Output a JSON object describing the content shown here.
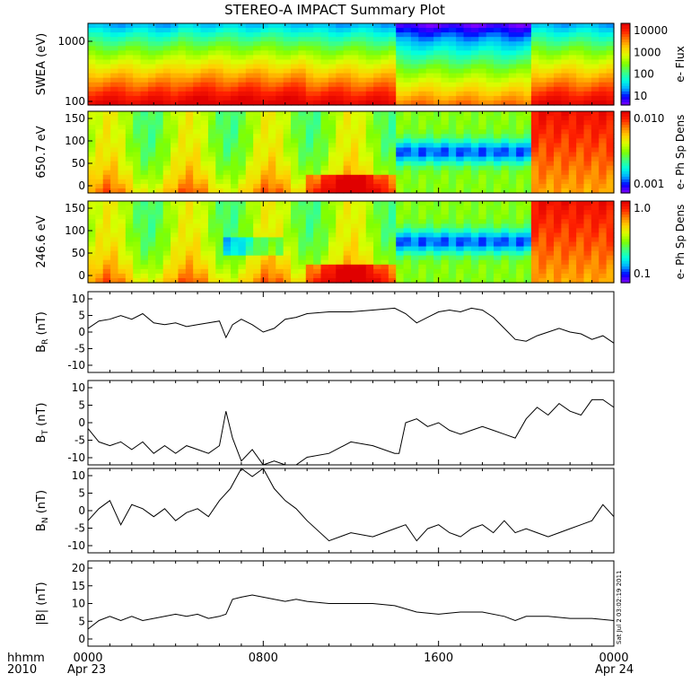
{
  "title": "STEREO-A IMPACT Summary Plot",
  "timestamp": "Sat Jul  2 03:02:19 2011",
  "footer": {
    "time_label": "hhmm",
    "year_label": "2010",
    "date_start": "Apr 23",
    "date_end": "Apr 24",
    "x_ticks": [
      "0000",
      "0800",
      "1600",
      "0000"
    ]
  },
  "colors": {
    "trace": "#000000",
    "colormap": [
      "#7f00ff",
      "#0000ff",
      "#00b0ff",
      "#00ffe0",
      "#40ff80",
      "#80ff00",
      "#d8ff00",
      "#ffd000",
      "#ff8000",
      "#ff2000",
      "#e00000"
    ]
  },
  "chart_data": [
    {
      "type": "heatmap",
      "ylabel": "SWEA (eV)",
      "y_scale": "log",
      "ylim": [
        100,
        2000
      ],
      "y_ticks": [
        "1000",
        "100"
      ],
      "colorbar_label": "e- Flux",
      "colorbar_scale": "log",
      "colorbar_ticks": [
        "10000",
        "1000",
        "100",
        "10"
      ]
    },
    {
      "type": "heatmap",
      "ylabel": "650.7 eV",
      "ylim": [
        0,
        180
      ],
      "y_ticks": [
        "150",
        "100",
        "50",
        "0"
      ],
      "colorbar_label": "e- Ph Sp Dens",
      "colorbar_scale": "log",
      "colorbar_ticks": [
        "0.010",
        "0.001"
      ]
    },
    {
      "type": "heatmap",
      "ylabel": "246.6 eV",
      "ylim": [
        0,
        180
      ],
      "y_ticks": [
        "150",
        "100",
        "50",
        "0"
      ],
      "colorbar_label": "e- Ph Sp Dens",
      "colorbar_scale": "log",
      "colorbar_ticks": [
        "1.0",
        "0.1"
      ]
    },
    {
      "type": "line",
      "ylabel_main": "B",
      "ylabel_sub": "R",
      "ylabel_unit": " (nT)",
      "ylim": [
        -12,
        10
      ],
      "y_ticks": [
        "10",
        "5",
        "0",
        "-5",
        "-10"
      ],
      "x_hours": [
        0,
        0.5,
        1,
        1.5,
        2,
        2.5,
        3,
        3.5,
        4,
        4.5,
        5,
        5.5,
        6,
        6.3,
        6.6,
        7,
        7.5,
        8,
        8.5,
        9,
        9.5,
        10,
        11,
        12,
        13,
        14,
        14.5,
        15,
        15.5,
        16,
        16.5,
        17,
        17.5,
        18,
        18.5,
        19,
        19.5,
        20,
        20.5,
        21,
        21.5,
        22,
        22.5,
        23,
        23.5,
        24
      ],
      "values": [
        0,
        2,
        2.5,
        3.5,
        2.5,
        4,
        1.5,
        1,
        1.5,
        0.5,
        1,
        1.5,
        2,
        -2.5,
        1,
        2.5,
        1,
        -1,
        0,
        2.5,
        3,
        4,
        4.5,
        4.5,
        5,
        5.5,
        4,
        1.5,
        3,
        4.5,
        5,
        4.5,
        5.5,
        5,
        3,
        0,
        -3,
        -3.5,
        -2,
        -1,
        0,
        -1,
        -1.5,
        -3,
        -2,
        -4
      ]
    },
    {
      "type": "line",
      "ylabel_main": "B",
      "ylabel_sub": "T",
      "ylabel_unit": " (nT)",
      "ylim": [
        -11,
        11
      ],
      "y_ticks": [
        "10",
        "5",
        "0",
        "-5",
        "-10"
      ],
      "x_hours": [
        0,
        0.5,
        1,
        1.5,
        2,
        2.5,
        3,
        3.5,
        4,
        4.5,
        5,
        5.5,
        6,
        6.3,
        6.6,
        7,
        7.5,
        8,
        8.5,
        9,
        9.5,
        10,
        11,
        12,
        13,
        14,
        14.2,
        14.5,
        15,
        15.5,
        16,
        16.5,
        17,
        17.5,
        18,
        18.5,
        19,
        19.5,
        20,
        20.5,
        21,
        21.5,
        22,
        22.5,
        23,
        23.5,
        24
      ],
      "values": [
        -1.5,
        -5,
        -6,
        -5,
        -7,
        -5,
        -8,
        -6,
        -8,
        -6,
        -7,
        -8,
        -6,
        3,
        -4,
        -10,
        -7,
        -11,
        -10,
        -11,
        -11,
        -9,
        -8,
        -5,
        -6,
        -8,
        -8,
        0,
        1,
        -1,
        0,
        -2,
        -3,
        -2,
        -1,
        -2,
        -3,
        -4,
        1,
        4,
        2,
        5,
        3,
        2,
        6,
        6,
        4
      ]
    },
    {
      "type": "line",
      "ylabel_main": "B",
      "ylabel_sub": "N",
      "ylabel_unit": " (nT)",
      "ylim": [
        -11,
        10
      ],
      "y_ticks": [
        "10",
        "5",
        "0",
        "-5",
        "-10"
      ],
      "x_hours": [
        0,
        0.5,
        1,
        1.5,
        2,
        2.5,
        3,
        3.5,
        4,
        4.5,
        5,
        5.5,
        6,
        6.5,
        7,
        7.5,
        8,
        8.5,
        9,
        9.5,
        10,
        11,
        12,
        13,
        14,
        14.5,
        15,
        15.5,
        16,
        16.5,
        17,
        17.5,
        18,
        18.5,
        19,
        19.5,
        20,
        20.5,
        21,
        21.5,
        22,
        22.5,
        23,
        23.5,
        24
      ],
      "values": [
        -3,
        0,
        2,
        -4,
        1,
        0,
        -2,
        0,
        -3,
        -1,
        0,
        -2,
        2,
        5,
        10,
        8,
        10,
        5,
        2,
        0,
        -3,
        -8,
        -6,
        -7,
        -5,
        -4,
        -8,
        -5,
        -4,
        -6,
        -7,
        -5,
        -4,
        -6,
        -3,
        -6,
        -5,
        -6,
        -7,
        -6,
        -5,
        -4,
        -3,
        1,
        -2
      ]
    },
    {
      "type": "line",
      "ylabel_main": "|B|",
      "ylabel_sub": "",
      "ylabel_unit": " (nT)",
      "ylim": [
        0,
        20
      ],
      "y_ticks": [
        "20",
        "15",
        "10",
        "5",
        "0"
      ],
      "x_hours": [
        0,
        0.5,
        1,
        1.5,
        2,
        2.5,
        3,
        3.5,
        4,
        4.5,
        5,
        5.5,
        6,
        6.3,
        6.6,
        7,
        7.5,
        8,
        8.5,
        9,
        9.5,
        10,
        11,
        12,
        13,
        14,
        15,
        16,
        17,
        18,
        19,
        19.5,
        20,
        21,
        22,
        23,
        24
      ],
      "values": [
        4,
        6,
        7,
        6,
        7,
        6,
        6.5,
        7,
        7.5,
        7,
        7.5,
        6.5,
        7,
        7.5,
        11,
        11.5,
        12,
        11.5,
        11,
        10.5,
        11,
        10.5,
        10,
        10,
        10,
        9.5,
        8,
        7.5,
        8,
        8,
        7,
        6,
        7,
        7,
        6.5,
        6.5,
        6
      ]
    }
  ]
}
